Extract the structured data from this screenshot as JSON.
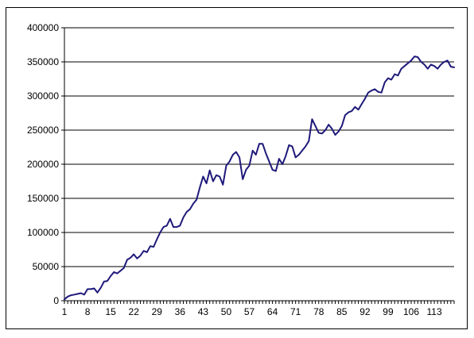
{
  "chart_data": {
    "type": "line",
    "title": "",
    "xlabel": "",
    "ylabel": "",
    "ylim": [
      0,
      400000
    ],
    "y_ticks": [
      0,
      50000,
      100000,
      150000,
      200000,
      250000,
      300000,
      350000,
      400000
    ],
    "y_tick_labels": [
      "0",
      "50000",
      "100000",
      "150000",
      "200000",
      "250000",
      "300000",
      "350000",
      "400000"
    ],
    "x_range": [
      1,
      119
    ],
    "x_ticks": [
      1,
      8,
      15,
      22,
      29,
      36,
      43,
      50,
      57,
      64,
      71,
      78,
      85,
      92,
      99,
      106,
      113
    ],
    "x_tick_labels": [
      "1",
      "8",
      "15",
      "22",
      "29",
      "36",
      "43",
      "50",
      "57",
      "64",
      "71",
      "78",
      "85",
      "92",
      "99",
      "106",
      "113"
    ],
    "grid": "horizontal",
    "legend": "none",
    "series": [
      {
        "color": "#1f1a7a",
        "x": [
          1,
          2,
          3,
          4,
          5,
          6,
          7,
          8,
          9,
          10,
          11,
          12,
          13,
          14,
          15,
          16,
          17,
          18,
          19,
          20,
          21,
          22,
          23,
          24,
          25,
          26,
          27,
          28,
          29,
          30,
          31,
          32,
          33,
          34,
          35,
          36,
          37,
          38,
          39,
          40,
          41,
          42,
          43,
          44,
          45,
          46,
          47,
          48,
          49,
          50,
          51,
          52,
          53,
          54,
          55,
          56,
          57,
          58,
          59,
          60,
          61,
          62,
          63,
          64,
          65,
          66,
          67,
          68,
          69,
          70,
          71,
          72,
          73,
          74,
          75,
          76,
          77,
          78,
          79,
          80,
          81,
          82,
          83,
          84,
          85,
          86,
          87,
          88,
          89,
          90,
          91,
          92,
          93,
          94,
          95,
          96,
          97,
          98,
          99,
          100,
          101,
          102,
          103,
          104,
          105,
          106,
          107,
          108,
          109,
          110,
          111,
          112,
          113,
          114,
          115,
          116,
          117,
          118,
          119
        ],
        "values": [
          2000,
          6000,
          8000,
          9000,
          10000,
          11000,
          9000,
          17000,
          17000,
          18000,
          12000,
          19000,
          28000,
          29000,
          36000,
          42000,
          40000,
          44000,
          48000,
          60000,
          63000,
          68000,
          62000,
          66000,
          73000,
          71000,
          80000,
          79000,
          90000,
          100000,
          108000,
          110000,
          120000,
          108000,
          108000,
          110000,
          122000,
          130000,
          134000,
          142000,
          148000,
          166000,
          182000,
          172000,
          191000,
          175000,
          184000,
          182000,
          170000,
          198000,
          204000,
          214000,
          218000,
          210000,
          178000,
          192000,
          198000,
          220000,
          214000,
          230000,
          230000,
          216000,
          204000,
          192000,
          190000,
          208000,
          200000,
          212000,
          228000,
          226000,
          210000,
          214000,
          220000,
          226000,
          234000,
          266000,
          256000,
          246000,
          245000,
          250000,
          258000,
          252000,
          243000,
          248000,
          256000,
          272000,
          276000,
          278000,
          284000,
          280000,
          288000,
          296000,
          305000,
          308000,
          310000,
          306000,
          305000,
          320000,
          326000,
          324000,
          332000,
          330000,
          340000,
          344000,
          348000,
          352000,
          358000,
          357000,
          350000,
          346000,
          340000,
          346000,
          344000,
          340000,
          346000,
          350000,
          352000,
          343000,
          342000
        ]
      }
    ]
  }
}
